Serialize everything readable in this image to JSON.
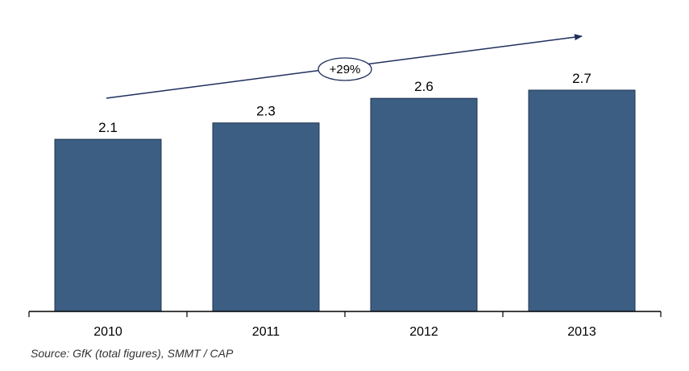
{
  "chart_data": {
    "type": "bar",
    "categories": [
      "2010",
      "2011",
      "2012",
      "2013"
    ],
    "values": [
      2.1,
      2.3,
      2.6,
      2.7
    ],
    "value_labels": [
      "2.1",
      "2.3",
      "2.6",
      "2.7"
    ],
    "title": "",
    "xlabel": "",
    "ylabel": "",
    "ylim": [
      0,
      2.7
    ],
    "grid": false,
    "legend": "none",
    "annotation": {
      "text": "+29%",
      "type": "growth-arrow"
    },
    "colors": {
      "bar": "#3C5E83",
      "arrow": "#1F2E5C",
      "axis": "#000000"
    }
  },
  "footer": {
    "source": "Source: GfK (total figures), SMMT / CAP"
  }
}
